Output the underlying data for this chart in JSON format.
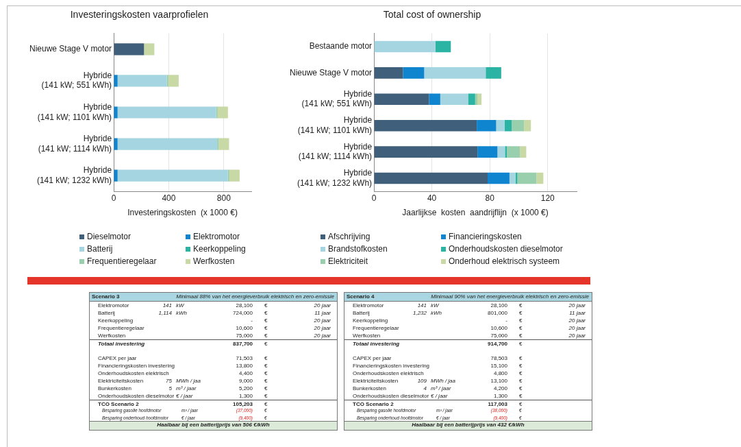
{
  "chart_data": [
    {
      "type": "bar",
      "title": "Investeringskosten vaarprofielen",
      "orientation": "horizontal",
      "stacked": true,
      "categories": [
        "Nieuwe Stage V motor",
        "Hybride\n(141 kW; 551 kWh)",
        "Hybride\n(141 kW; 1101 kWh)",
        "Hybride\n(141 kW; 1114 kWh)",
        "Hybride\n(141 kW; 1232 kWh)"
      ],
      "series": [
        {
          "name": "Dieselmotor",
          "color": "#3f5f7a",
          "values": [
            220,
            0,
            0,
            0,
            0
          ]
        },
        {
          "name": "Elektromotor",
          "color": "#0f85d0",
          "values": [
            0,
            28,
            28,
            28,
            28
          ]
        },
        {
          "name": "Batterij",
          "color": "#a6d5e2",
          "values": [
            0,
            358,
            716,
            724,
            801
          ]
        },
        {
          "name": "Keerkoppeling",
          "color": "#2bb3a3",
          "values": [
            0,
            0,
            0,
            0,
            0
          ]
        },
        {
          "name": "Frequentieregelaar",
          "color": "#99cfad",
          "values": [
            0,
            11,
            11,
            11,
            11
          ]
        },
        {
          "name": "Werfkosten",
          "color": "#c8d9a6",
          "values": [
            75,
            75,
            75,
            75,
            75
          ]
        }
      ],
      "xlim": [
        0,
        1000
      ],
      "xticks": [
        0,
        400,
        800
      ],
      "xlabel": "Investeringskosten  (x 1000 €)",
      "grid": "x",
      "legend": "bottom"
    },
    {
      "type": "bar",
      "title": "Total cost of ownership",
      "orientation": "horizontal",
      "stacked": true,
      "categories": [
        "Bestaande motor",
        "Nieuwe Stage V motor",
        "Hybride\n(141 kW; 551 kWh)",
        "Hybride\n(141 kW; 1101 kWh)",
        "Hybride\n(141 kW; 1114 kWh)",
        "Hybride\n(141 kW; 1232 kWh)"
      ],
      "series": [
        {
          "name": "Afschrijving",
          "color": "#3f5f7a",
          "values": [
            0,
            20,
            38,
            71,
            71.5,
            78.5
          ]
        },
        {
          "name": "Financieringskosten",
          "color": "#0f85d0",
          "values": [
            0,
            14.7,
            7.8,
            13.4,
            13.8,
            15.1
          ]
        },
        {
          "name": "Brandstofkosten",
          "color": "#a6d5e2",
          "values": [
            42.4,
            42.5,
            19.2,
            5.8,
            5.2,
            4.2
          ]
        },
        {
          "name": "Onderhoudskosten dieselmotor",
          "color": "#2bb3a3",
          "values": [
            10.7,
            10.7,
            4.9,
            4.9,
            1.3,
            1.3
          ]
        },
        {
          "name": "Elektriciteit",
          "color": "#99cfad",
          "values": [
            0,
            0,
            1.5,
            8.6,
            9,
            13.1
          ]
        },
        {
          "name": "Onderhoud elektrisch systeem",
          "color": "#c8d9a6",
          "values": [
            0,
            0,
            2.9,
            4.7,
            4.4,
            4.8
          ]
        }
      ],
      "xlim": [
        0,
        140
      ],
      "xticks": [
        0,
        40,
        80,
        120
      ],
      "xlabel": "Jaarlijkse  kosten  aandrijflijn  (x 1000 €)",
      "grid": "x",
      "legend": "bottom"
    },
    {
      "type": "other",
      "title": "Scenario 3",
      "subtitle": "Minimaal 88% van het energieverbruik elektrisch en zero-emissie",
      "cell_labels": [
        [
          "Elektromotor",
          "141",
          "kW",
          "28,100",
          "€",
          "20 jaar"
        ],
        [
          "Batterij",
          "1,114",
          "kWh",
          "724,000",
          "€",
          "11 jaar"
        ],
        [
          "Keerkoppeling",
          null,
          null,
          "-",
          "€",
          "20 jaar"
        ],
        [
          "Frequentieregelaar",
          null,
          null,
          "10,600",
          "€",
          "20 jaar"
        ],
        [
          "Werfkosten",
          null,
          null,
          "75,000",
          "€",
          "20 jaar"
        ],
        [
          "Totaal investering",
          null,
          null,
          "837,700",
          "€",
          null
        ],
        [
          null,
          null,
          null,
          null,
          null,
          null
        ],
        [
          "CAPEX per jaar",
          null,
          null,
          "71,503",
          "€",
          null
        ],
        [
          "Financieringskosten investering",
          null,
          null,
          "13,800",
          "€",
          null
        ],
        [
          "Onderhoudskosten elektrisch",
          null,
          null,
          "4,400",
          "€",
          null
        ],
        [
          "Elektriciteitskosten",
          "75",
          "MWh / jaa",
          "9,000",
          "€",
          null
        ],
        [
          "Bunkerkosten",
          "5",
          "m³ / jaar",
          "5,200",
          "€",
          null
        ],
        [
          "Onderhoudskosten dieselmotor",
          null,
          "€ / jaar",
          "1,300",
          "€",
          null
        ],
        [
          "TCO Scenario 2",
          null,
          null,
          "105,203",
          "€",
          null
        ],
        [
          "Besparing gasolie hoofdmotor",
          null,
          "m³ / jaar",
          "(37,000)",
          "€",
          null
        ],
        [
          "Besparing onderhoud hoofdmotor",
          null,
          "€ / jaar",
          "(9,400)",
          "€",
          null
        ]
      ],
      "annotations": [
        "Haalbaar bij een batterijprijs van 506 €/kWh"
      ]
    },
    {
      "type": "other",
      "title": "Scenario 4",
      "subtitle": "Minimaal 90% van het energieverbruik elektrisch en zero-emissie",
      "cell_labels": [
        [
          "Elektromotor",
          "141",
          "kW",
          "28,100",
          "€",
          "20 jaar"
        ],
        [
          "Batterij",
          "1,232",
          "kWh",
          "801,000",
          "€",
          "11 jaar"
        ],
        [
          "Keerkoppeling",
          null,
          null,
          "-",
          "€",
          "20 jaar"
        ],
        [
          "Frequentieregelaar",
          null,
          null,
          "10,600",
          "€",
          "20 jaar"
        ],
        [
          "Werfkosten",
          null,
          null,
          "75,000",
          "€",
          "20 jaar"
        ],
        [
          "Totaal investering",
          null,
          null,
          "914,700",
          "€",
          null
        ],
        [
          null,
          null,
          null,
          null,
          null,
          null
        ],
        [
          "CAPEX per jaar",
          null,
          null,
          "78,503",
          "€",
          null
        ],
        [
          "Financieringskosten investering",
          null,
          null,
          "15,100",
          "€",
          null
        ],
        [
          "Onderhoudskosten elektrisch",
          null,
          null,
          "4,800",
          "€",
          null
        ],
        [
          "Elektriciteitskosten",
          "109",
          "MWh / jaa",
          "13,100",
          "€",
          null
        ],
        [
          "Bunkerkosten",
          "4",
          "m³ / jaar",
          "4,200",
          "€",
          null
        ],
        [
          "Onderhoudskosten dieselmotor",
          null,
          "€ / jaar",
          "1,300",
          "€",
          null
        ],
        [
          "TCO Scenario 2",
          null,
          null,
          "117,003",
          "€",
          null
        ],
        [
          "Besparing gasolie hoofdmotor",
          null,
          "m³ / jaar",
          "(38,000)",
          "€",
          null
        ],
        [
          "Besparing onderhoud hoofdmotor",
          null,
          "€ / jaar",
          "(9,400)",
          "€",
          null
        ]
      ],
      "annotations": [
        "Haalbaar bij een batterijprijs van 432 €/kWh"
      ]
    }
  ]
}
